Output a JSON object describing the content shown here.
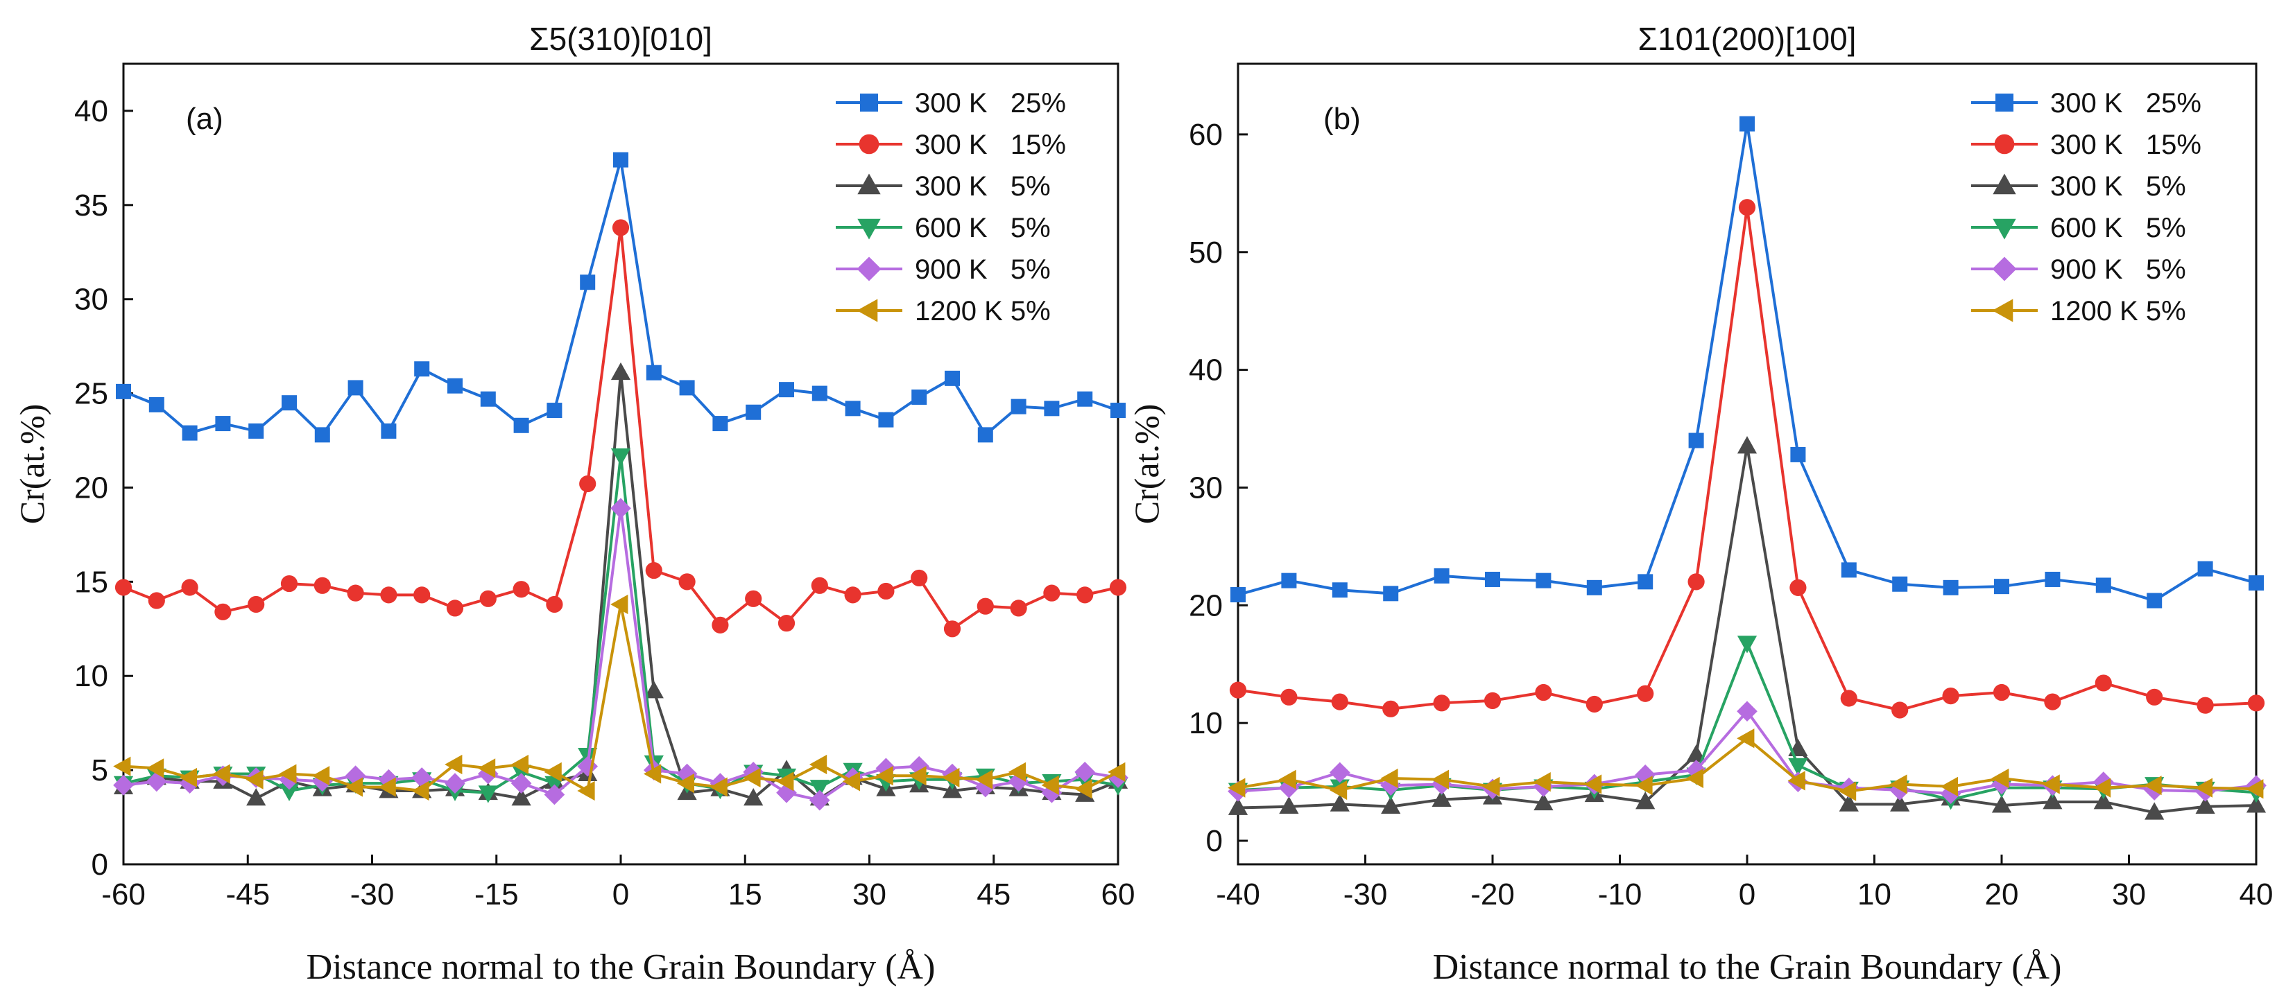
{
  "figure": {
    "xlabel": "Distance normal to the Grain Boundary (Å)",
    "ylabel": "Cr(at.%)"
  },
  "chart_data": [
    {
      "type": "line",
      "panel_label": "(a)",
      "title": "Σ5(310)[010]",
      "xlabel": "Distance normal to the Grain Boundary (Å)",
      "ylabel": "Cr(at.%)",
      "xlim": [
        -60,
        60
      ],
      "ylim": [
        0,
        42.5
      ],
      "xticks": [
        -60,
        -45,
        -30,
        -15,
        0,
        15,
        30,
        45,
        60
      ],
      "yticks": [
        0,
        5,
        10,
        15,
        20,
        25,
        30,
        35,
        40
      ],
      "legend_position": "top-right",
      "x": [
        -60,
        -56,
        -52,
        -48,
        -44,
        -40,
        -36,
        -32,
        -28,
        -24,
        -20,
        -16,
        -12,
        -8,
        -4,
        0,
        4,
        8,
        12,
        16,
        20,
        24,
        28,
        32,
        36,
        40,
        44,
        48,
        52,
        56,
        60
      ],
      "series": [
        {
          "name": "300 K   25%",
          "color": "#1f6fd6",
          "marker": "square",
          "values": [
            25.1,
            24.4,
            22.9,
            23.4,
            23.0,
            24.5,
            22.8,
            25.3,
            23.0,
            26.3,
            25.4,
            24.7,
            23.3,
            24.1,
            30.9,
            37.4,
            26.1,
            25.3,
            23.4,
            24.0,
            25.2,
            25.0,
            24.2,
            23.6,
            24.8,
            25.8,
            22.8,
            24.3,
            24.2,
            24.7,
            24.1
          ]
        },
        {
          "name": "300 K   15%",
          "color": "#e8342e",
          "marker": "circle",
          "values": [
            14.7,
            14.0,
            14.7,
            13.4,
            13.8,
            14.9,
            14.8,
            14.4,
            14.3,
            14.3,
            13.6,
            14.1,
            14.6,
            13.8,
            20.2,
            33.8,
            15.6,
            15.0,
            12.7,
            14.1,
            12.8,
            14.8,
            14.3,
            14.5,
            15.2,
            12.5,
            13.7,
            13.6,
            14.4,
            14.3,
            14.7
          ]
        },
        {
          "name": "300 K   5%",
          "color": "#4a4a4a",
          "marker": "triangle-up",
          "values": [
            4.1,
            4.6,
            4.4,
            4.4,
            3.5,
            4.4,
            4.0,
            4.2,
            3.9,
            3.9,
            4.0,
            3.8,
            3.5,
            4.4,
            4.8,
            26.1,
            9.2,
            3.8,
            4.0,
            3.5,
            5.0,
            3.5,
            4.6,
            4.0,
            4.2,
            3.9,
            4.1,
            4.0,
            3.8,
            3.7,
            4.4
          ]
        },
        {
          "name": "600 K   5%",
          "color": "#27a363",
          "marker": "triangle-down",
          "values": [
            4.3,
            4.7,
            4.6,
            4.8,
            4.8,
            3.9,
            4.2,
            4.3,
            4.3,
            4.5,
            3.9,
            3.8,
            4.9,
            4.3,
            5.8,
            21.7,
            5.4,
            4.3,
            4.0,
            4.9,
            4.7,
            4.1,
            5.0,
            4.4,
            4.5,
            4.5,
            4.7,
            4.3,
            4.4,
            4.5,
            4.2
          ]
        },
        {
          "name": "900 K   5%",
          "color": "#b66ce0",
          "marker": "diamond",
          "values": [
            4.2,
            4.4,
            4.3,
            4.7,
            4.6,
            4.5,
            4.4,
            4.7,
            4.5,
            4.6,
            4.3,
            4.8,
            4.3,
            3.7,
            5.2,
            18.9,
            5.0,
            4.8,
            4.3,
            4.9,
            3.8,
            3.4,
            4.6,
            5.1,
            5.2,
            4.8,
            4.1,
            4.4,
            3.8,
            4.9,
            4.6
          ]
        },
        {
          "name": "1200 K 5%",
          "color": "#c9930a",
          "marker": "triangle-left",
          "values": [
            5.2,
            5.1,
            4.6,
            4.8,
            4.5,
            4.8,
            4.7,
            4.1,
            4.1,
            3.9,
            5.3,
            5.1,
            5.3,
            4.9,
            3.9,
            13.8,
            4.8,
            4.3,
            4.1,
            4.6,
            4.4,
            5.3,
            4.4,
            4.7,
            4.7,
            4.6,
            4.5,
            4.9,
            4.2,
            4.0,
            4.9
          ]
        }
      ]
    },
    {
      "type": "line",
      "panel_label": "(b)",
      "title": "Σ101(200)[100]",
      "xlabel": "Distance normal to the Grain Boundary (Å)",
      "ylabel": "Cr(at.%)",
      "xlim": [
        -40,
        40
      ],
      "ylim": [
        -2,
        66
      ],
      "xticks": [
        -40,
        -30,
        -20,
        -10,
        0,
        10,
        20,
        30,
        40
      ],
      "yticks": [
        0,
        10,
        20,
        30,
        40,
        50,
        60
      ],
      "legend_position": "top-right",
      "x": [
        -40,
        -36,
        -32,
        -28,
        -24,
        -20,
        -16,
        -12,
        -8,
        -4,
        0,
        4,
        8,
        12,
        16,
        20,
        24,
        28,
        32,
        36,
        40
      ],
      "series": [
        {
          "name": "300 K   25%",
          "color": "#1f6fd6",
          "marker": "square",
          "values": [
            20.9,
            22.1,
            21.3,
            21.0,
            22.5,
            22.2,
            22.1,
            21.5,
            22.0,
            34.0,
            60.9,
            32.8,
            23.0,
            21.8,
            21.5,
            21.6,
            22.2,
            21.7,
            20.4,
            23.1,
            21.9
          ]
        },
        {
          "name": "300 K   15%",
          "color": "#e8342e",
          "marker": "circle",
          "values": [
            12.8,
            12.2,
            11.8,
            11.2,
            11.7,
            11.9,
            12.6,
            11.6,
            12.5,
            22.0,
            53.8,
            21.5,
            12.1,
            11.1,
            12.3,
            12.6,
            11.8,
            13.4,
            12.2,
            11.5,
            11.7
          ]
        },
        {
          "name": "300 K   5%",
          "color": "#4a4a4a",
          "marker": "triangle-up",
          "values": [
            2.8,
            2.9,
            3.1,
            2.9,
            3.5,
            3.7,
            3.2,
            3.9,
            3.3,
            7.3,
            33.5,
            7.8,
            3.1,
            3.1,
            3.6,
            3.0,
            3.3,
            3.3,
            2.4,
            2.9,
            3.0
          ]
        },
        {
          "name": "600 K   5%",
          "color": "#27a363",
          "marker": "triangle-down",
          "values": [
            4.3,
            4.5,
            4.6,
            4.3,
            4.7,
            4.3,
            4.6,
            4.4,
            5.0,
            5.6,
            16.8,
            6.4,
            4.4,
            4.5,
            3.5,
            4.5,
            4.5,
            4.4,
            4.8,
            4.4,
            4.1
          ]
        },
        {
          "name": "900 K   5%",
          "color": "#b66ce0",
          "marker": "diamond",
          "values": [
            4.2,
            4.5,
            5.8,
            4.7,
            4.8,
            4.4,
            4.6,
            4.8,
            5.6,
            6.0,
            11.0,
            5.0,
            4.5,
            4.3,
            4.0,
            4.8,
            4.7,
            5.0,
            4.3,
            4.2,
            4.7
          ]
        },
        {
          "name": "1200 K 5%",
          "color": "#c9930a",
          "marker": "triangle-left",
          "values": [
            4.5,
            5.2,
            4.3,
            5.3,
            5.2,
            4.6,
            5.0,
            4.8,
            4.7,
            5.3,
            8.7,
            5.1,
            4.2,
            4.8,
            4.6,
            5.3,
            4.8,
            4.5,
            4.7,
            4.5,
            4.4
          ]
        }
      ]
    }
  ]
}
